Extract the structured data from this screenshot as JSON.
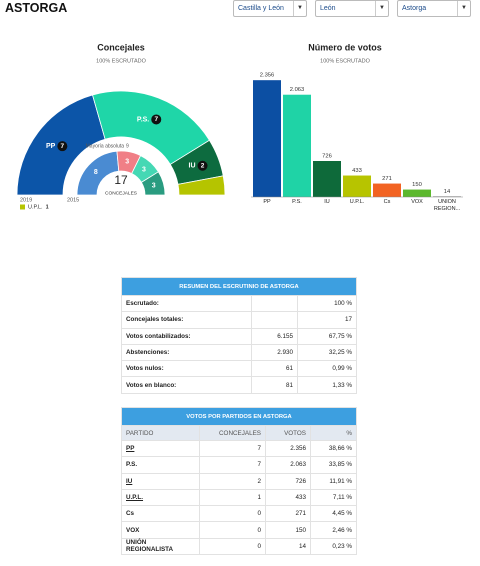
{
  "header": {
    "title": "ASTORGA",
    "selects": [
      "Castilla y León",
      "León",
      "Astorga"
    ]
  },
  "chart_data": [
    {
      "type": "hemicycle",
      "title": "Concejales",
      "subtitle": "100% ESCRUTADO",
      "total": 17,
      "total_label": "CONCEJALES",
      "majority_label": "Mayoría absoluta",
      "majority": 9,
      "rings": [
        {
          "label": "2019",
          "categories": [
            "PP",
            "P.S.",
            "IU",
            "U.P.L."
          ],
          "values": [
            7,
            7,
            2,
            1
          ],
          "colors": [
            "#0c55a8",
            "#1fd6a8",
            "#0d6b3f",
            "#b5c400"
          ]
        },
        {
          "label": "2015",
          "values": [
            8,
            3,
            3,
            3
          ],
          "colors": [
            "#4a8bd2",
            "#f07f86",
            "#45d8b4",
            "#2a9c80"
          ]
        }
      ]
    },
    {
      "type": "bar",
      "title": "Número de votos",
      "subtitle": "100% ESCRUTADO",
      "categories": [
        "PP",
        "P.S.",
        "IU",
        "U.P.L.",
        "Cs",
        "VOX",
        "UNION REGION..."
      ],
      "values": [
        2356,
        2063,
        726,
        433,
        271,
        150,
        14
      ],
      "value_labels": [
        "2.356",
        "2.063",
        "726",
        "433",
        "271",
        "150",
        "14"
      ],
      "colors": [
        "#0c4fa3",
        "#1fd3a6",
        "#0e6a3a",
        "#b7c400",
        "#f26322",
        "#5cb82d",
        "#9a9a9a"
      ],
      "ylim": [
        0,
        2400
      ]
    }
  ],
  "summary_table": {
    "title": "RESUMEN DEL ESCRUTINIO DE ASTORGA",
    "rows": [
      [
        "Escrutado:",
        "100 %"
      ],
      [
        "Concejales totales:",
        "17"
      ],
      [
        "Votos contabilizados:",
        "6.155",
        "67,75 %"
      ],
      [
        "Abstenciones:",
        "2.930",
        "32,25 %"
      ],
      [
        "Votos nulos:",
        "61",
        "0,99 %"
      ],
      [
        "Votos en blanco:",
        "81",
        "1,33 %"
      ]
    ]
  },
  "party_table": {
    "title": "VOTOS POR PARTIDOS EN ASTORGA",
    "columns": [
      "PARTIDO",
      "CONCEJALES",
      "VOTOS",
      "%"
    ],
    "rows": [
      {
        "cells": [
          "PP",
          "7",
          "2.356",
          "38,66 %"
        ],
        "link": true
      },
      {
        "cells": [
          "P.S.",
          "7",
          "2.063",
          "33,85 %"
        ],
        "link": false
      },
      {
        "cells": [
          "IU",
          "2",
          "726",
          "11,91 %"
        ],
        "link": true
      },
      {
        "cells": [
          "U.P.L.",
          "1",
          "433",
          "7,11 %"
        ],
        "link": true
      },
      {
        "cells": [
          "Cs",
          "0",
          "271",
          "4,45 %"
        ],
        "link": false
      },
      {
        "cells": [
          "VOX",
          "0",
          "150",
          "2,46 %"
        ],
        "link": false
      },
      {
        "cells": [
          "UNIÓN REGIONALISTA",
          "0",
          "14",
          "0,23 %"
        ],
        "link": false
      }
    ]
  }
}
